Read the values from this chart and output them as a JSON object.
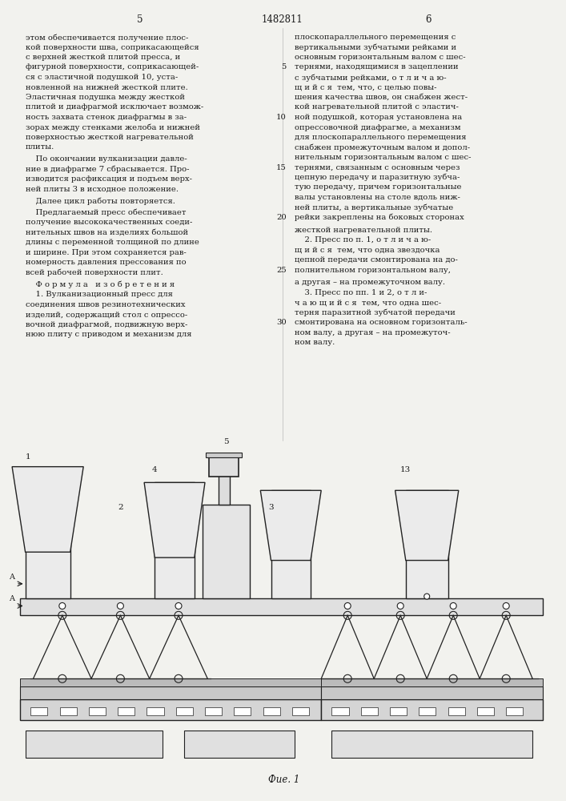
{
  "page_number_left": "5",
  "patent_number": "1482811",
  "page_number_right": "6",
  "background_color": "#f2f2ee",
  "text_color": "#1a1a1a",
  "left_column_lines": [
    "этом обеспечивается получение плос-",
    "кой поверхности шва, соприкасающейся",
    "с верхней жесткой плитой пресса, и",
    "фигурной поверхности, соприкасающей-",
    "ся с эластичной подушкой 10, уста-",
    "новленной на нижней жесткой плите.",
    "Эластичная подушка между жесткой",
    "плитой и диафрагмой исключает возмож-",
    "ность захвата стенок диафрагмы в за-",
    "зорах между стенками желоба и нижней",
    "поверхностью жесткой нагревательной",
    "плиты.",
    "    По окончании вулканизации давле-",
    "ние в диафрагме 7 сбрасывается. Про-",
    "изводится расфиксация и подъем верх-",
    "ней плиты 3 в исходное положение.",
    "    Далее цикл работы повторяется.",
    "    Предлагаемый пресс обеспечивает",
    "получение высококачественных соеди-",
    "нительных швов на изделиях большой",
    "длины с переменной толщиной по длине",
    "и ширине. При этом сохраняется рав-",
    "номерность давления прессования по",
    "всей рабочей поверхности плит.",
    "    Ф о р м у л а   и з о б р е т е н и я",
    "    1. Вулканизационный пресс для",
    "соединения швов резинотехнических",
    "изделий, содержащий стол с опрессо-",
    "вочной диафрагмой, подвижную верх-",
    "нюю плиту с приводом и механизм для"
  ],
  "right_column_lines": [
    "плоскопараллельного перемещения с",
    "вертикальными зубчатыми рейками и",
    "основным горизонтальным валом с шес-",
    "тернями, находящимися в зацеплении",
    "с зубчатыми рейками, о т л и ч а ю-",
    "щ и й с я  тем, что, с целью повы-",
    "шения качества швов, он снабжен жест-",
    "кой нагревательной плитой с эластич-",
    "ной подушкой, которая установлена на",
    "опрессовочной диафрагме, а механизм",
    "для плоскопараллельного перемещения",
    "снабжен промежуточным валом и допол-",
    "нительным горизонтальным валом с шес-",
    "тернями, связанным с основным через",
    "цепную передачу и паразитную зубча-",
    "тую передачу, причем горизонтальные",
    "валы установлены на столе вдоль ниж-",
    "ней плиты, а вертикальные зубчатые",
    "рейки закреплены на боковых сторонах",
    "жесткой нагревательной плиты.",
    "    2. Пресс по п. 1, о т л и ч а ю-",
    "щ и й с я  тем, что одна звездочка",
    "цепной передачи смонтирована на до-",
    "полнительном горизонтальном валу,",
    "а другая – на промежуточном валу.",
    "    3. Пресс по пп. 1 и 2, о т л и-",
    "ч а ю щ и й с я  тем, что одна шес-",
    "терня паразитной зубчатой передачи",
    "смонтирована на основном горизонталь-",
    "ном валу, а другая – на промежуточ-",
    "ном валу."
  ],
  "line_numbers_right": [
    5,
    10,
    15,
    20,
    25,
    30
  ],
  "line_number_positions": [
    3,
    8,
    13,
    18,
    23,
    28
  ],
  "fig_caption": "Фие. 1"
}
